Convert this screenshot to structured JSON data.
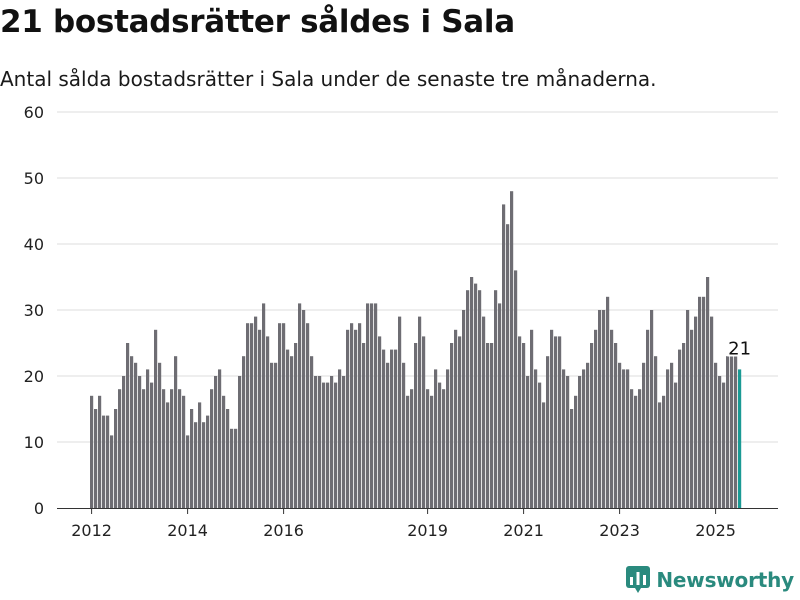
{
  "title": "21 bostadsrätter såldes i Sala",
  "subtitle": "Antal sålda bostadsrätter i Sala under de senaste tre månaderna.",
  "brand": {
    "name": "Newsworthy",
    "icon": "newsworthy-logo-icon"
  },
  "colors": {
    "bar": "#6e6d73",
    "highlight": "#1a9a94",
    "grid": "#dddddd",
    "axis": "#333333",
    "brand": "#2a8a7e"
  },
  "chart_data": {
    "type": "bar",
    "title": "21 bostadsrätter såldes i Sala",
    "xlabel": "",
    "ylabel": "",
    "ylim": [
      0,
      60
    ],
    "yticks": [
      0,
      10,
      20,
      30,
      40,
      50,
      60
    ],
    "xticks": [
      2012,
      2014,
      2016,
      2019,
      2021,
      2023,
      2025
    ],
    "grid": true,
    "period": "monthly",
    "start": "2012-01",
    "highlight_label": "21",
    "series": [
      {
        "values": [
          17,
          15,
          17,
          14,
          14,
          11,
          15,
          18,
          20,
          25,
          23,
          22,
          20,
          18,
          21,
          19,
          27,
          22,
          18,
          16,
          18,
          23,
          18,
          17,
          11,
          15,
          13,
          16,
          13,
          14,
          18,
          20,
          21,
          17,
          15,
          12,
          12,
          20,
          23,
          28,
          28,
          29,
          27,
          31,
          26,
          22,
          22,
          28,
          28,
          24,
          23,
          25,
          31,
          30,
          28,
          23,
          20,
          20,
          19,
          19,
          20,
          19,
          21,
          20,
          27,
          28,
          27,
          28,
          25,
          31,
          31,
          31,
          26,
          24,
          22,
          24,
          24,
          29,
          22,
          17,
          18,
          25,
          29,
          26,
          18,
          17,
          21,
          19,
          18,
          21,
          25,
          27,
          26,
          30,
          33,
          35,
          34,
          33,
          29,
          25,
          25,
          33,
          31,
          46,
          43,
          48,
          36,
          26,
          25,
          20,
          27,
          21,
          19,
          16,
          23,
          27,
          26,
          26,
          21,
          20,
          15,
          17,
          20,
          21,
          22,
          25,
          27,
          30,
          30,
          32,
          27,
          25,
          22,
          21,
          21,
          18,
          17,
          18,
          22,
          27,
          30,
          23,
          16,
          17,
          21,
          22,
          19,
          24,
          25,
          30,
          27,
          29,
          32,
          32,
          35,
          29,
          22,
          20,
          19,
          23,
          23,
          23,
          21
        ]
      }
    ]
  }
}
